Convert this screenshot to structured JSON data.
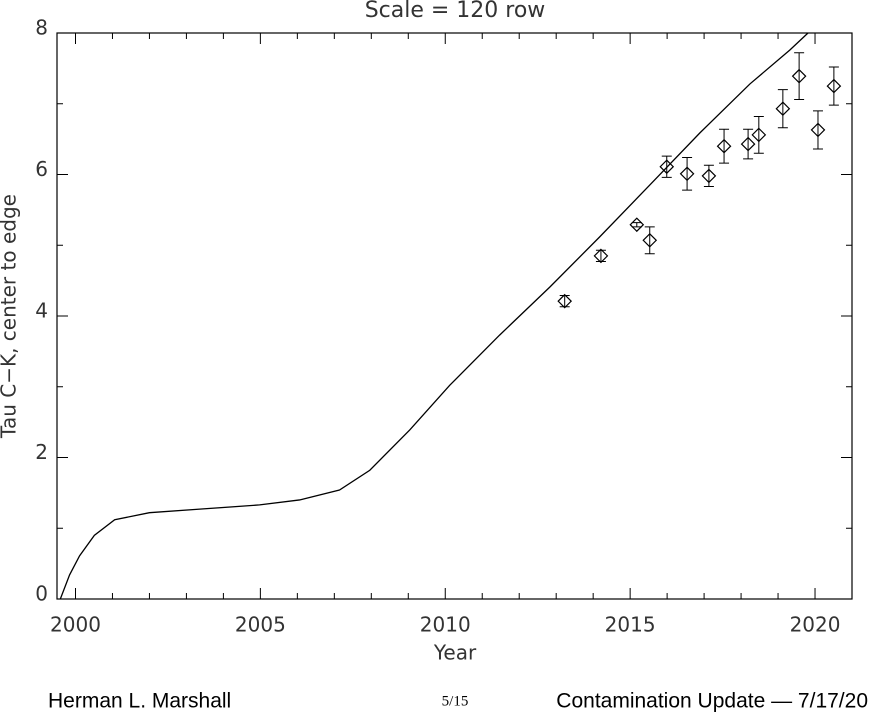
{
  "chart_data": {
    "type": "scatter",
    "title": "Scale = 120 row",
    "x_label": "Year",
    "y_label": "Tau C−K, center to edge",
    "xlim": [
      1999.5,
      2021
    ],
    "xticks": [
      2000,
      2005,
      2010,
      2015,
      2020
    ],
    "ylim": [
      0,
      8
    ],
    "yticks": [
      0,
      2,
      4,
      6,
      8
    ],
    "color": "#000000",
    "series": [
      {
        "type": "line",
        "x": [
          1999.59,
          1999.84,
          2000.11,
          2000.51,
          2001.06,
          2002.0,
          2003.36,
          2004.98,
          2006.06,
          2007.14,
          2007.96,
          2009.04,
          2010.12,
          2011.47,
          2012.83,
          2014.18,
          2015.53,
          2016.89,
          2018.24,
          2019.32,
          2019.81
        ],
        "values": [
          0,
          0.34,
          0.61,
          0.9,
          1.12,
          1.22,
          1.27,
          1.33,
          1.4,
          1.54,
          1.82,
          2.39,
          3.02,
          3.73,
          4.41,
          5.12,
          5.85,
          6.59,
          7.28,
          7.76,
          8.0
        ]
      },
      {
        "type": "scatter",
        "marker": "diamond",
        "x": [
          2013.23,
          2014.21,
          2015.18,
          2015.53,
          2015.99,
          2016.54,
          2017.13,
          2017.54,
          2018.19,
          2018.48,
          2019.13,
          2019.57,
          2020.08,
          2020.51
        ],
        "values": [
          4.21,
          4.85,
          5.29,
          5.07,
          6.11,
          6.01,
          5.98,
          6.4,
          6.43,
          6.56,
          6.93,
          7.39,
          6.63,
          7.25
        ],
        "errors": [
          0.08,
          0.08,
          0.03,
          0.19,
          0.15,
          0.23,
          0.15,
          0.24,
          0.21,
          0.26,
          0.27,
          0.33,
          0.27,
          0.27
        ]
      }
    ]
  },
  "footer": {
    "author": "Herman L. Marshall",
    "page": "5/15",
    "talk": "Contamination Update — 7/17/20"
  }
}
